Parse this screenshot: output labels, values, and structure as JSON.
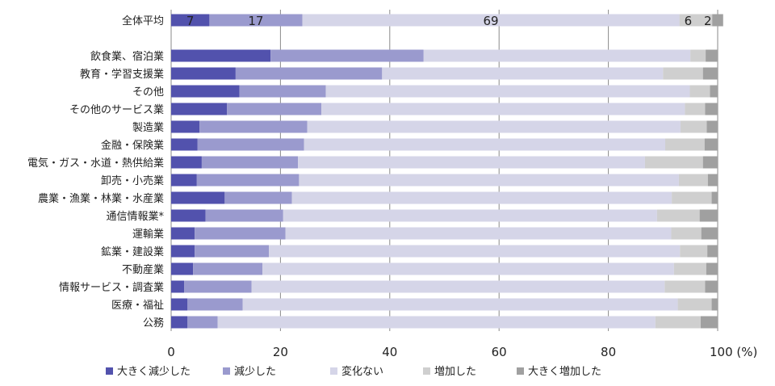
{
  "chart_data": {
    "type": "bar",
    "orientation": "horizontal",
    "stacked": true,
    "xlim": [
      0,
      100
    ],
    "xticks": [
      "0",
      "20",
      "40",
      "60",
      "80",
      "100 (%)"
    ],
    "grid": "vertical",
    "legend_position": "bottom",
    "categories": [
      "全体平均",
      "飲食業、宿泊業",
      "教育・学習支援業",
      "その他",
      "その他のサービス業",
      "製造業",
      "金融・保険業",
      "電気・ガス・水道・熱供給業",
      "卸売・小売業",
      "農業・漁業・林業・水産業",
      "通信情報業*",
      "運輸業",
      "鉱業・建設業",
      "不動産業",
      "情報サービス・調査業",
      "医療・福祉",
      "公務"
    ],
    "series": [
      {
        "name": "大きく減少した",
        "color": "#5252ad",
        "values": [
          7,
          18.2,
          11.8,
          12.5,
          10.2,
          5.2,
          4.8,
          5.6,
          4.7,
          9.8,
          6.3,
          4.3,
          4.3,
          4.0,
          2.4,
          3.0,
          3.0
        ]
      },
      {
        "name": "減少した",
        "color": "#9a9ace",
        "values": [
          17,
          28.0,
          26.8,
          15.8,
          17.3,
          19.7,
          19.5,
          17.6,
          18.7,
          12.3,
          14.2,
          16.6,
          13.6,
          12.7,
          12.3,
          10.1,
          5.5
        ]
      },
      {
        "name": "変化ない",
        "color": "#d5d5e8",
        "values": [
          69,
          48.8,
          51.4,
          66.6,
          66.5,
          68.3,
          66.1,
          63.5,
          69.5,
          69.5,
          68.4,
          70.6,
          75.2,
          75.3,
          75.6,
          79.6,
          80.1
        ]
      },
      {
        "name": "増加した",
        "color": "#cfcfcf",
        "values": [
          6,
          2.8,
          7.3,
          3.7,
          3.7,
          4.8,
          7.2,
          10.6,
          5.3,
          7.3,
          7.8,
          5.5,
          5.0,
          5.9,
          7.4,
          6.2,
          8.3
        ]
      },
      {
        "name": "大きく増加した",
        "color": "#a0a0a0",
        "values": [
          2,
          2.2,
          2.7,
          1.4,
          2.3,
          2.0,
          2.4,
          2.7,
          1.8,
          1.1,
          3.3,
          3.0,
          1.9,
          2.1,
          2.3,
          1.1,
          3.1
        ]
      }
    ],
    "data_labels": {
      "category": "全体平均",
      "values": [
        "7",
        "17",
        "69",
        "6",
        "2"
      ]
    }
  }
}
